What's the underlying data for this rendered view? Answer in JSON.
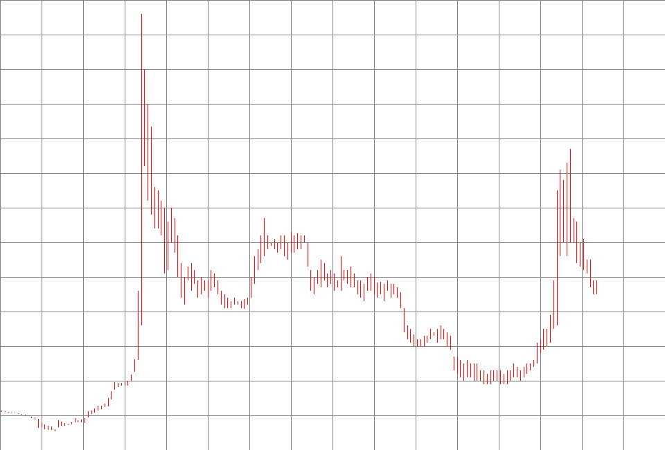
{
  "chart_data": {
    "type": "bar",
    "title": "",
    "xlabel": "",
    "ylabel": "",
    "grid": true,
    "legend": "none",
    "colors": {
      "bar": "#cc2222",
      "grid": "#808080",
      "background": "#ffffff"
    },
    "ylim": [
      0,
      650
    ],
    "series": [
      {
        "name": "",
        "ranges": [
          [
            57,
            55
          ],
          [
            56,
            55
          ],
          [
            55,
            54
          ],
          [
            54,
            53
          ],
          [
            54,
            53
          ],
          [
            53,
            52
          ],
          [
            52,
            51
          ],
          [
            51,
            50
          ],
          [
            50,
            49
          ],
          [
            48,
            46
          ],
          [
            47,
            44
          ],
          [
            45,
            32
          ],
          [
            40,
            33
          ],
          [
            37,
            30
          ],
          [
            35,
            29
          ],
          [
            34,
            29
          ],
          [
            30,
            27
          ],
          [
            43,
            33
          ],
          [
            41,
            35
          ],
          [
            39,
            35
          ],
          [
            37,
            36
          ],
          [
            40,
            37
          ],
          [
            46,
            40
          ],
          [
            43,
            40
          ],
          [
            44,
            40
          ],
          [
            46,
            39
          ],
          [
            56,
            47
          ],
          [
            57,
            52
          ],
          [
            60,
            54
          ],
          [
            64,
            57
          ],
          [
            64,
            59
          ],
          [
            67,
            62
          ],
          [
            75,
            63
          ],
          [
            85,
            73
          ],
          [
            98,
            87
          ],
          [
            97,
            91
          ],
          [
            97,
            93
          ],
          [
            98,
            93
          ],
          [
            100,
            93
          ],
          [
            109,
            100
          ],
          [
            131,
            113
          ],
          [
            230,
            130
          ],
          [
            630,
            180
          ],
          [
            550,
            410
          ],
          [
            500,
            360
          ],
          [
            467,
            340
          ],
          [
            380,
            320
          ],
          [
            375,
            320
          ],
          [
            360,
            310
          ],
          [
            350,
            255
          ],
          [
            330,
            260
          ],
          [
            350,
            300
          ],
          [
            335,
            285
          ],
          [
            310,
            250
          ],
          [
            270,
            220
          ],
          [
            250,
            210
          ],
          [
            265,
            245
          ],
          [
            270,
            230
          ],
          [
            260,
            240
          ],
          [
            245,
            220
          ],
          [
            250,
            225
          ],
          [
            245,
            230
          ],
          [
            245,
            220
          ],
          [
            260,
            230
          ],
          [
            255,
            235
          ],
          [
            245,
            225
          ],
          [
            230,
            210
          ],
          [
            225,
            205
          ],
          [
            220,
            205
          ],
          [
            215,
            205
          ],
          [
            220,
            210
          ],
          [
            215,
            210
          ],
          [
            215,
            205
          ],
          [
            218,
            204
          ],
          [
            220,
            210
          ],
          [
            250,
            220
          ],
          [
            280,
            240
          ],
          [
            290,
            260
          ],
          [
            310,
            270
          ],
          [
            335,
            280
          ],
          [
            310,
            290
          ],
          [
            300,
            295
          ],
          [
            305,
            290
          ],
          [
            300,
            285
          ],
          [
            310,
            290
          ],
          [
            310,
            280
          ],
          [
            300,
            275
          ],
          [
            315,
            285
          ],
          [
            310,
            285
          ],
          [
            313,
            290
          ],
          [
            310,
            290
          ],
          [
            310,
            300
          ],
          [
            300,
            265
          ],
          [
            260,
            230
          ],
          [
            250,
            225
          ],
          [
            260,
            240
          ],
          [
            275,
            235
          ],
          [
            270,
            245
          ],
          [
            255,
            235
          ],
          [
            260,
            240
          ],
          [
            255,
            230
          ],
          [
            245,
            235
          ],
          [
            280,
            230
          ],
          [
            260,
            245
          ],
          [
            260,
            240
          ],
          [
            265,
            235
          ],
          [
            255,
            235
          ],
          [
            245,
            225
          ],
          [
            245,
            220
          ],
          [
            240,
            215
          ],
          [
            250,
            230
          ],
          [
            255,
            230
          ],
          [
            250,
            225
          ],
          [
            242,
            220
          ],
          [
            243,
            225
          ],
          [
            240,
            215
          ],
          [
            245,
            230
          ],
          [
            240,
            220
          ],
          [
            240,
            225
          ],
          [
            235,
            220
          ],
          [
            228,
            205
          ],
          [
            205,
            170
          ],
          [
            180,
            160
          ],
          [
            175,
            155
          ],
          [
            167,
            150
          ],
          [
            160,
            150
          ],
          [
            160,
            150
          ],
          [
            165,
            150
          ],
          [
            165,
            155
          ],
          [
            175,
            160
          ],
          [
            170,
            165
          ],
          [
            175,
            155
          ],
          [
            180,
            160
          ],
          [
            175,
            160
          ],
          [
            170,
            150
          ],
          [
            165,
            145
          ],
          [
            135,
            115
          ],
          [
            135,
            110
          ],
          [
            130,
            105
          ],
          [
            125,
            100
          ],
          [
            130,
            105
          ],
          [
            125,
            105
          ],
          [
            125,
            100
          ],
          [
            125,
            100
          ],
          [
            115,
            100
          ],
          [
            115,
            95
          ],
          [
            110,
            95
          ],
          [
            115,
            95
          ],
          [
            115,
            100
          ],
          [
            115,
            100
          ],
          [
            115,
            95
          ],
          [
            110,
            95
          ],
          [
            115,
            95
          ],
          [
            115,
            100
          ],
          [
            125,
            105
          ],
          [
            120,
            105
          ],
          [
            115,
            100
          ],
          [
            120,
            105
          ],
          [
            125,
            110
          ],
          [
            125,
            115
          ],
          [
            130,
            120
          ],
          [
            155,
            125
          ],
          [
            160,
            140
          ],
          [
            175,
            145
          ],
          [
            175,
            150
          ],
          [
            195,
            155
          ],
          [
            245,
            175
          ],
          [
            375,
            180
          ],
          [
            405,
            280
          ],
          [
            390,
            300
          ],
          [
            415,
            280
          ],
          [
            435,
            300
          ],
          [
            335,
            300
          ],
          [
            330,
            270
          ],
          [
            300,
            265
          ],
          [
            305,
            260
          ],
          [
            275,
            255
          ],
          [
            275,
            235
          ],
          [
            245,
            225
          ],
          [
            245,
            225
          ]
        ]
      }
    ]
  }
}
